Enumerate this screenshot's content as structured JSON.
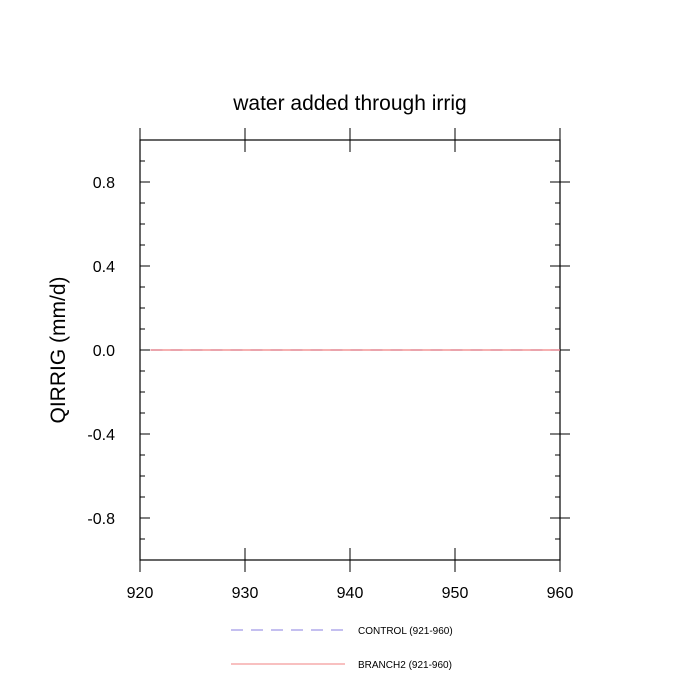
{
  "chart_data": {
    "type": "line",
    "title": "water added through irrig",
    "xlabel": "",
    "ylabel": "QIRRIG  (mm/d)",
    "xlim": [
      920,
      960
    ],
    "ylim": [
      -1.0,
      1.0
    ],
    "x_ticks": [
      920,
      930,
      940,
      950,
      960
    ],
    "x_tick_labels": [
      "920",
      "930",
      "940",
      "950",
      "960"
    ],
    "y_ticks": [
      -0.8,
      -0.4,
      0.0,
      0.4,
      0.8
    ],
    "y_tick_labels": [
      "-0.8",
      "-0.4",
      "0.0",
      "0.4",
      "0.8"
    ],
    "grid": false,
    "legend_position": "bottom-center",
    "series": [
      {
        "name": "CONTROL (921-960)",
        "color": "#8a7fe0",
        "dash": "dashed",
        "x": [
          921,
          960
        ],
        "y": [
          0.0,
          0.0
        ]
      },
      {
        "name": "BRANCH2 (921-960)",
        "color": "#f08080",
        "dash": "solid",
        "x": [
          921,
          960
        ],
        "y": [
          0.0,
          0.0
        ]
      }
    ]
  }
}
